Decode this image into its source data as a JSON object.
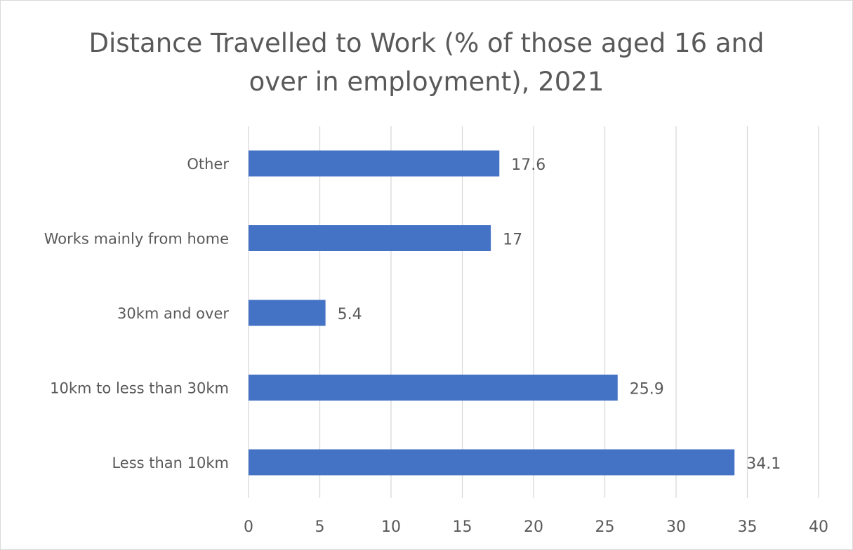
{
  "chart_data": {
    "type": "bar",
    "orientation": "horizontal",
    "title_lines": [
      "Distance Travelled to Work (% of those aged 16 and",
      "over in employment), 2021"
    ],
    "categories": [
      "Other",
      "Works mainly from home",
      "30km and over",
      "10km to less than 30km",
      "Less than 10km"
    ],
    "values": [
      17.6,
      17,
      5.4,
      25.9,
      34.1
    ],
    "data_labels": [
      "17.6",
      "17",
      "5.4",
      "25.9",
      "34.1"
    ],
    "xlim": [
      0,
      40
    ],
    "x_ticks": [
      0,
      5,
      10,
      15,
      20,
      25,
      30,
      35,
      40
    ],
    "grid": "vertical",
    "bar_color": "#4472c4",
    "text_color": "#595959",
    "grid_color": "#d9d9d9"
  }
}
